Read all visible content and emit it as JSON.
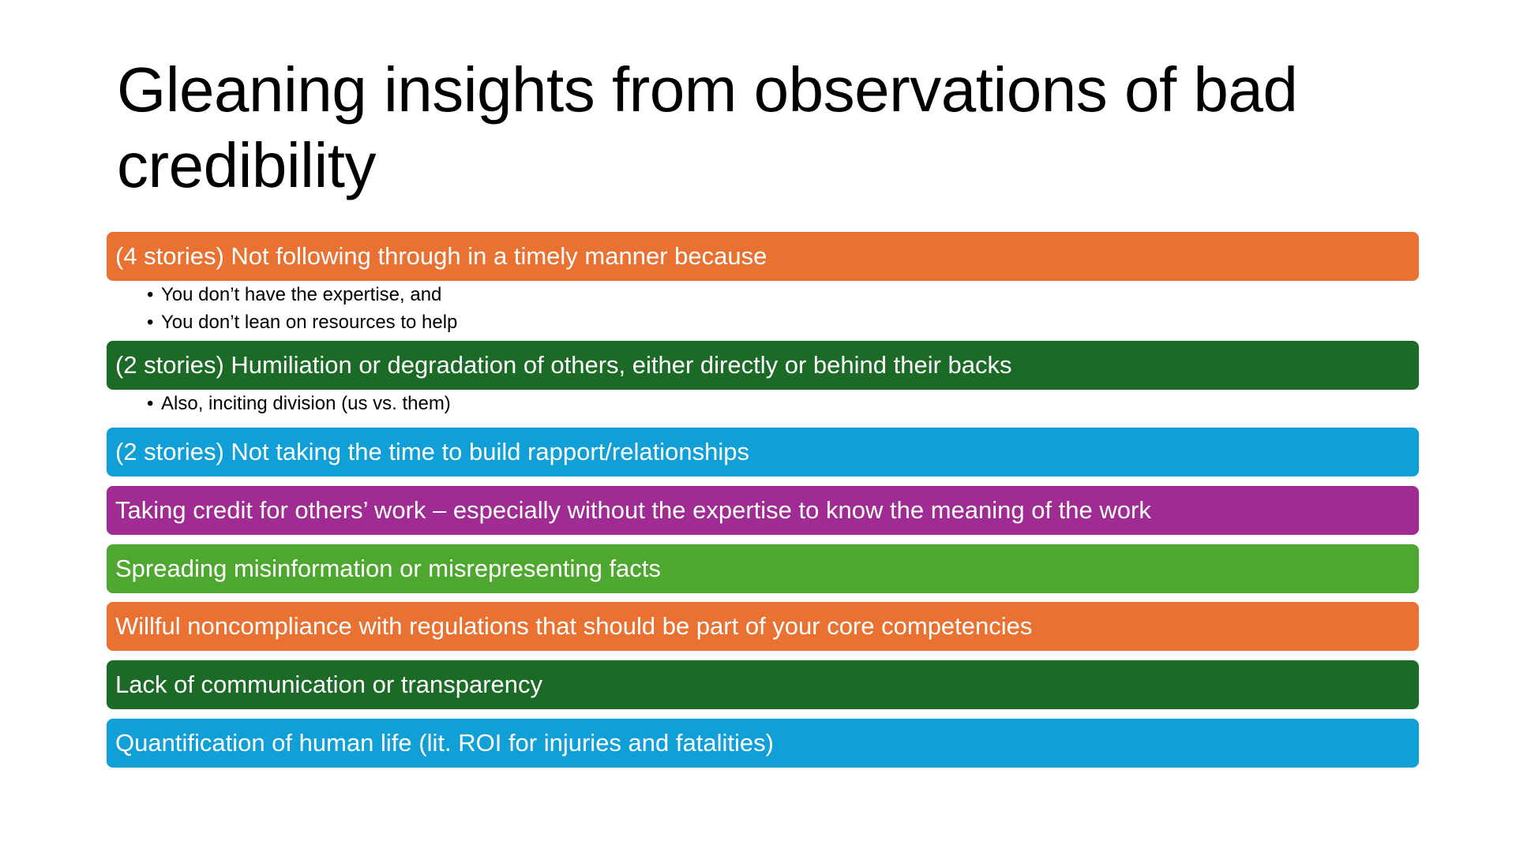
{
  "slide": {
    "title": "Gleaning insights from observations of bad credibility",
    "bullet_glyph": "•",
    "items": [
      {
        "text": "(4 stories) Not following through in a timely manner because",
        "color": "#E97132",
        "subitems": [
          "You don’t have the expertise, and",
          "You don’t lean on resources to help"
        ]
      },
      {
        "text": "(2 stories) Humiliation or degradation of others, either directly or behind their backs",
        "color": "#1B6B26",
        "subitems": [
          "Also, inciting division (us vs. them)"
        ]
      },
      {
        "text": "(2 stories) Not taking the time to build rapport/relationships",
        "color": "#109FD6",
        "subitems": []
      },
      {
        "text": "Taking credit for others’ work – especially without the expertise to know the meaning of the work",
        "color": "#A02B93",
        "subitems": []
      },
      {
        "text": "Spreading misinformation or misrepresenting facts",
        "color": "#4EA72E",
        "subitems": []
      },
      {
        "text": "Willful noncompliance with regulations that should be part of your core competencies",
        "color": "#E97132",
        "subitems": []
      },
      {
        "text": "Lack of communication or transparency",
        "color": "#1B6B26",
        "subitems": []
      },
      {
        "text": "Quantification of human life (lit. ROI for injuries and fatalities)",
        "color": "#109FD6",
        "subitems": []
      }
    ]
  }
}
